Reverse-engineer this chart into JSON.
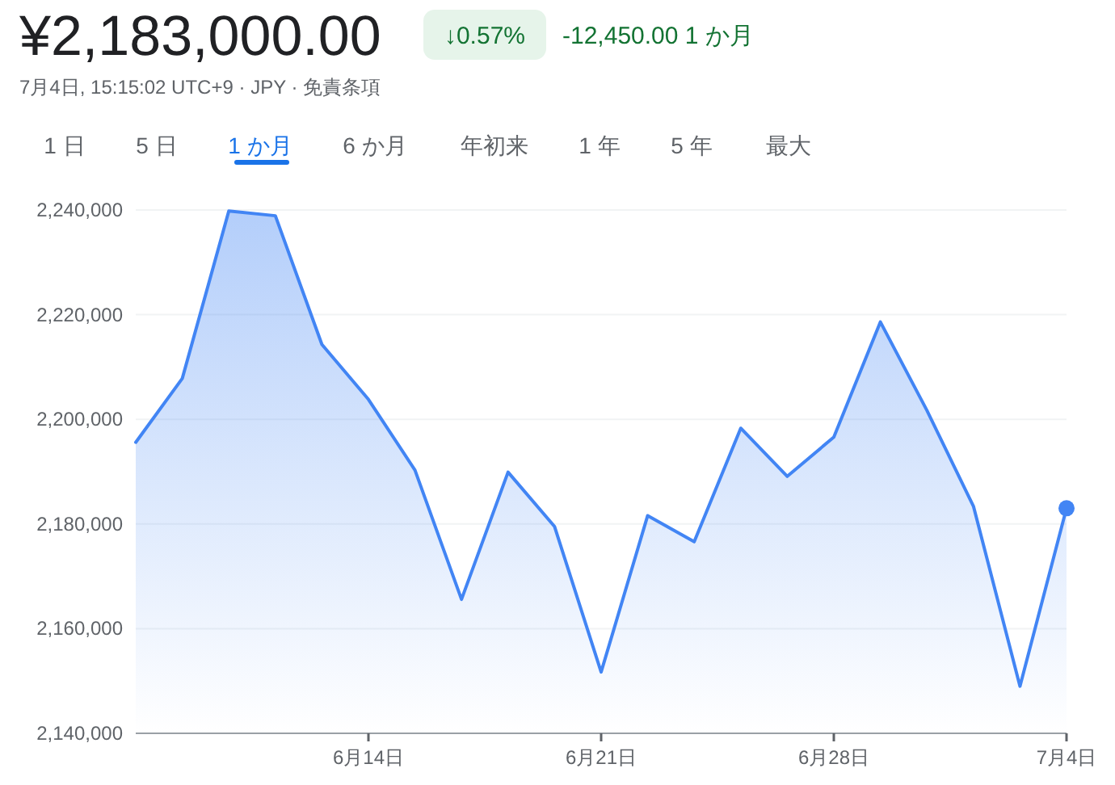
{
  "chart_data": {
    "type": "area",
    "title": "¥2,183,000.00",
    "subtitle": "7月4日, 15:15:02 UTC+9 · JPY · 免責条項",
    "annotations": [
      "↓0.57%",
      "-12,450.00 1 か月",
      "1 日",
      "5 日",
      "1 か月",
      "6 か月",
      "年初来",
      "1 年",
      "5 年",
      "最大"
    ],
    "categories": [
      null,
      null,
      null,
      null,
      null,
      "6月14日",
      null,
      null,
      null,
      null,
      "6月21日",
      null,
      null,
      null,
      null,
      "6月28日",
      null,
      null,
      null,
      null,
      "7月4日"
    ],
    "series": [
      {
        "color": "#4285f4",
        "values": [
          2195600,
          2207800,
          2239800,
          2238900,
          2214300,
          2203800,
          2190300,
          2165600,
          2189900,
          2179500,
          2151700,
          2181600,
          2176600,
          2198300,
          2189100,
          2196600,
          2218600,
          2201700,
          2183400,
          2149000,
          2183000
        ]
      }
    ],
    "ylim": [
      2140000,
      2240000
    ],
    "yticks": [
      {
        "value": 2140000,
        "label": "2,140,000"
      },
      {
        "value": 2160000,
        "label": "2,160,000"
      },
      {
        "value": 2180000,
        "label": "2,180,000"
      },
      {
        "value": 2200000,
        "label": "2,200,000"
      },
      {
        "value": 2220000,
        "label": "2,220,000"
      },
      {
        "value": 2240000,
        "label": "2,240,000"
      }
    ],
    "grid": "y"
  }
}
